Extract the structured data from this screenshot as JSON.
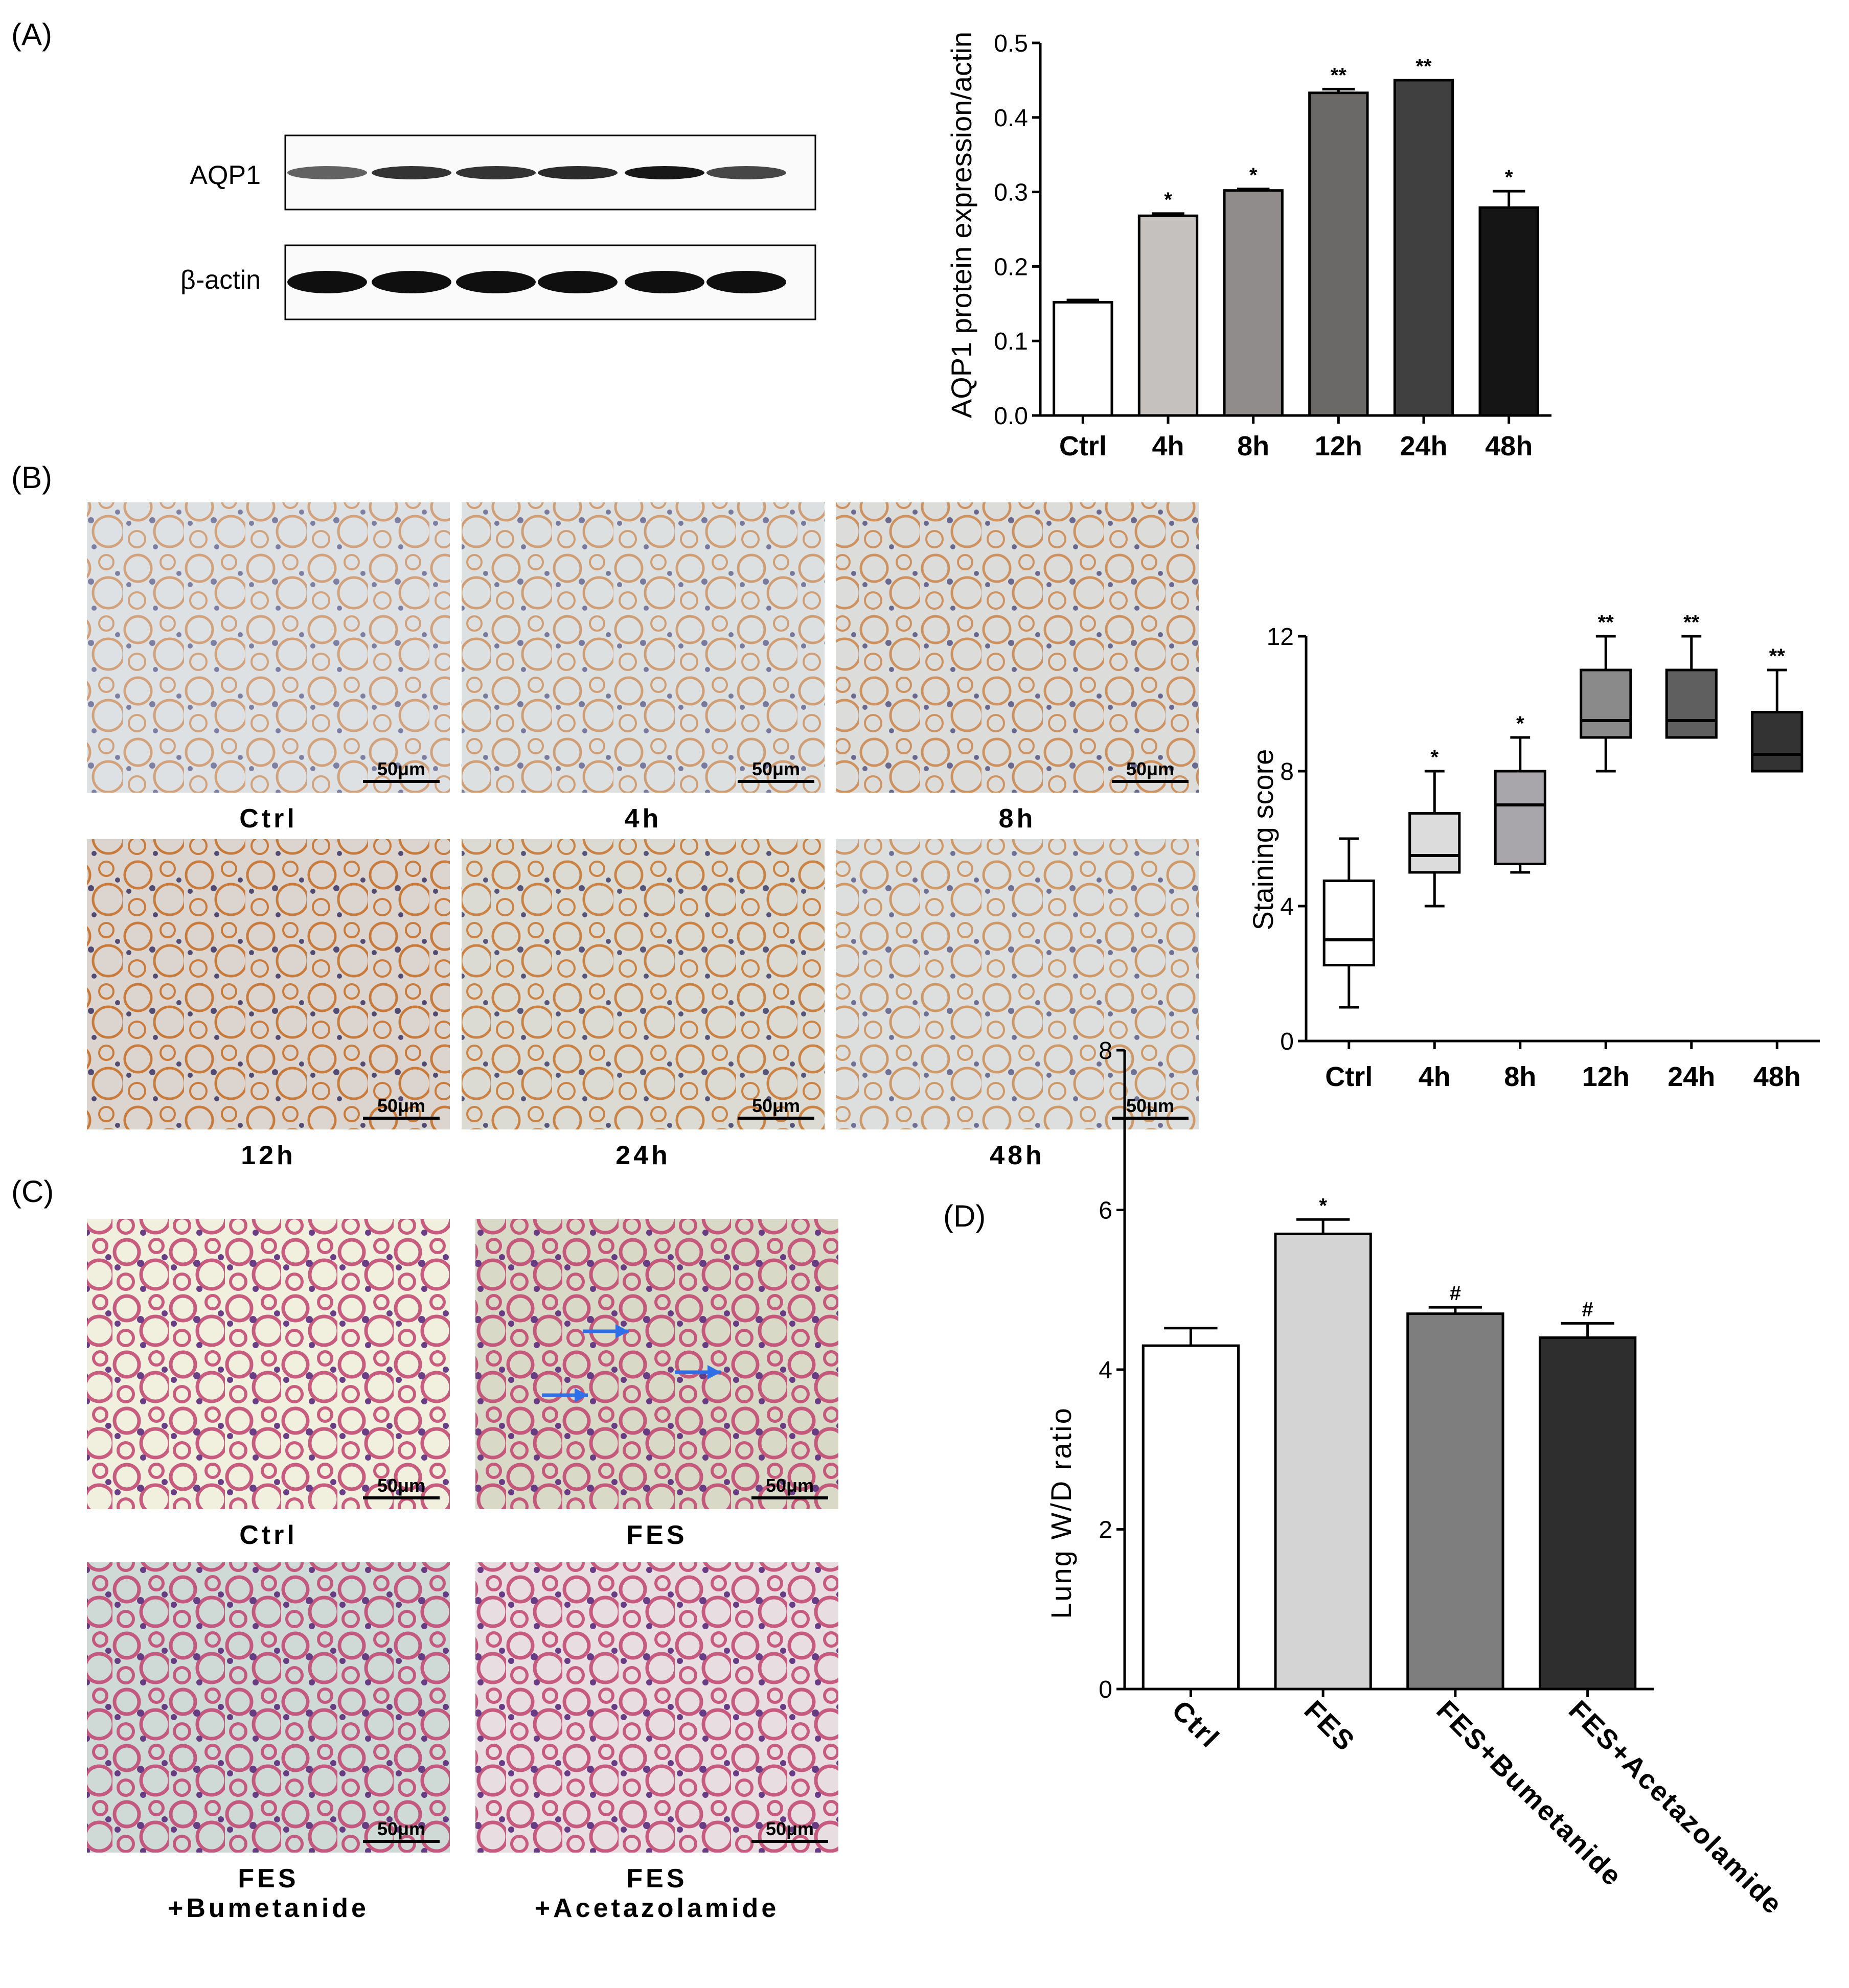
{
  "panel_labels": [
    "(A)",
    "(B)",
    "(C)",
    "(D)"
  ],
  "western_blot": {
    "rows": [
      {
        "label": "AQP1",
        "band_darkness": [
          0.55,
          0.8,
          0.8,
          0.85,
          0.95,
          0.7
        ]
      },
      {
        "label": "β-actin",
        "band_darkness": [
          1.0,
          1.0,
          1.0,
          1.0,
          1.0,
          1.0
        ]
      }
    ]
  },
  "micrographs_b": {
    "scale_bar": "50μm",
    "panels": [
      {
        "label": "Ctrl",
        "stain": "#c8752f",
        "density": 0.35
      },
      {
        "label": "4h",
        "stain": "#c8752f",
        "density": 0.4
      },
      {
        "label": "8h",
        "stain": "#c06a2a",
        "density": 0.55
      },
      {
        "label": "12h",
        "stain": "#c46320",
        "density": 0.85
      },
      {
        "label": "24h",
        "stain": "#c8842e",
        "density": 0.8
      },
      {
        "label": "48h",
        "stain": "#c8752f",
        "density": 0.5
      }
    ]
  },
  "micrographs_c": {
    "scale_bar": "50μm",
    "panels": [
      {
        "label_lines": [
          "Ctrl"
        ],
        "bg": "#f1f0df",
        "has_arrows": false
      },
      {
        "label_lines": [
          "FES"
        ],
        "bg": "#d9d9c7",
        "has_arrows": true
      },
      {
        "label_lines": [
          "FES",
          "+Bumetanide"
        ],
        "bg": "#cfd9d5",
        "has_arrows": false
      },
      {
        "label_lines": [
          "FES",
          "+Acetazolamide"
        ],
        "bg": "#e8dde0",
        "has_arrows": false
      }
    ],
    "arrow_color": "#2f6fe8"
  },
  "chart_data": [
    {
      "type": "bar",
      "panel": "A",
      "categories": [
        "Ctrl",
        "4h",
        "8h",
        "12h",
        "24h",
        "48h"
      ],
      "values": [
        0.152,
        0.268,
        0.302,
        0.433,
        0.45,
        0.279
      ],
      "errors": [
        0.003,
        0.003,
        0.002,
        0.005,
        0.0,
        0.022
      ],
      "annotations": [
        "",
        "*",
        "*",
        "**",
        "**",
        "*"
      ],
      "colors": [
        "#ffffff",
        "#c4c1bf",
        "#8f8c8b",
        "#6b6968",
        "#414040",
        "#151515"
      ],
      "ylabel": "AQP1 protein expression/actin",
      "ylim": [
        0,
        0.5
      ],
      "yticks": [
        "0.0",
        "0.1",
        "0.2",
        "0.3",
        "0.4",
        "0.5"
      ]
    },
    {
      "type": "box",
      "panel": "B",
      "categories": [
        "Ctrl",
        "4h",
        "8h",
        "12h",
        "24h",
        "48h"
      ],
      "boxes": [
        {
          "min": 1,
          "q1": 2.25,
          "median": 3,
          "q3": 4.75,
          "max": 6
        },
        {
          "min": 4,
          "q1": 5,
          "median": 5.5,
          "q3": 6.75,
          "max": 8
        },
        {
          "min": 5,
          "q1": 5.25,
          "median": 7,
          "q3": 8,
          "max": 9
        },
        {
          "min": 8,
          "q1": 9,
          "median": 9.5,
          "q3": 11,
          "max": 12
        },
        {
          "min": 9,
          "q1": 9,
          "median": 9.5,
          "q3": 11,
          "max": 12
        },
        {
          "min": 8,
          "q1": 8,
          "median": 8.5,
          "q3": 9.75,
          "max": 11
        }
      ],
      "annotations": [
        "",
        "*",
        "*",
        "**",
        "**",
        "**"
      ],
      "colors": [
        "#ffffff",
        "#dcdcdc",
        "#a8a6aa",
        "#8a8a8a",
        "#5f5f5f",
        "#333333"
      ],
      "ylabel": "Staining score",
      "ylim": [
        0,
        12
      ],
      "yticks": [
        "0",
        "4",
        "8",
        "12"
      ]
    },
    {
      "type": "bar",
      "panel": "D",
      "categories": [
        "Ctrl",
        "FES",
        "FES+Bumetanide",
        "FES+Acetazolamide"
      ],
      "values": [
        4.3,
        5.7,
        4.7,
        4.4
      ],
      "errors": [
        0.22,
        0.18,
        0.08,
        0.18
      ],
      "annotations": [
        "",
        "*",
        "#",
        "#"
      ],
      "colors": [
        "#ffffff",
        "#d4d4d4",
        "#7e7e7e",
        "#2e2e2e"
      ],
      "ylabel": "Lung W/D ratio",
      "ylim": [
        0,
        8
      ],
      "yticks": [
        "0",
        "2",
        "4",
        "6",
        "8"
      ]
    }
  ]
}
